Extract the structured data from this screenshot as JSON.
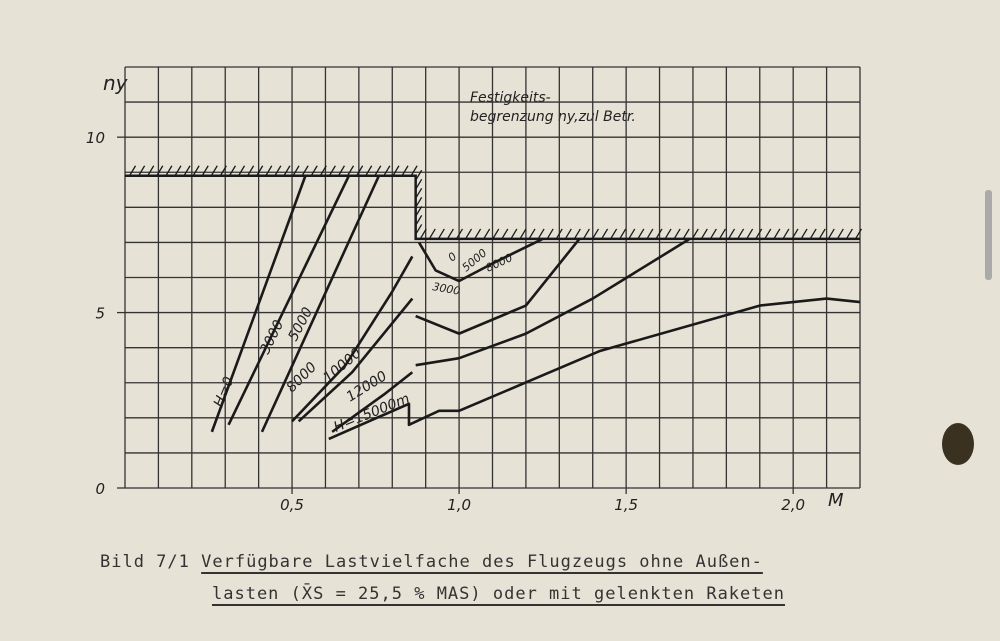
{
  "chart_data": {
    "type": "line",
    "y_label": "ny",
    "x_label": "M",
    "xlim": [
      0,
      2.2
    ],
    "ylim": [
      0,
      12
    ],
    "xticks": [
      {
        "value": 0.5,
        "label": "0,5"
      },
      {
        "value": 1.0,
        "label": "1,0"
      },
      {
        "value": 1.5,
        "label": "1,5"
      },
      {
        "value": 2.0,
        "label": "2,0"
      }
    ],
    "yticks": [
      0,
      5,
      10
    ],
    "xgrid": [
      0,
      0.1,
      0.2,
      0.3,
      0.4,
      0.5,
      0.6,
      0.7,
      0.8,
      0.9,
      1.0,
      1.1,
      1.2,
      1.3,
      1.4,
      1.5,
      1.6,
      1.7,
      1.8,
      1.9,
      2.0,
      2.1,
      2.2
    ],
    "ygrid": [
      0,
      1,
      2,
      3,
      4,
      5,
      6,
      7,
      8,
      9,
      10,
      11,
      12
    ],
    "grid": true,
    "series": [
      {
        "name": "H=0",
        "color": "#1a1a1a",
        "x": [
          0.26,
          0.54
        ],
        "values": [
          1.6,
          8.9
        ]
      },
      {
        "name": "3000",
        "color": "#1a1a1a",
        "x": [
          0.31,
          0.67
        ],
        "values": [
          1.8,
          8.9
        ]
      },
      {
        "name": "5000",
        "color": "#1a1a1a",
        "x": [
          0.41,
          0.76
        ],
        "values": [
          1.6,
          8.9
        ]
      },
      {
        "name": "8000",
        "color": "#1a1a1a",
        "x": [
          0.5,
          0.66,
          0.8,
          0.86,
          0.86,
          0.88,
          0.93,
          1.0,
          1.1,
          1.25
        ],
        "values": [
          1.9,
          3.5,
          5.6,
          6.6,
          null,
          7.0,
          6.2,
          5.9,
          6.4,
          7.1
        ]
      },
      {
        "name": "10000",
        "color": "#1a1a1a",
        "x": [
          0.52,
          0.68,
          0.86,
          0.86,
          0.87,
          1.0,
          1.2,
          1.36
        ],
        "values": [
          1.9,
          3.3,
          5.4,
          null,
          4.9,
          4.4,
          5.2,
          7.1
        ]
      },
      {
        "name": "12000",
        "color": "#1a1a1a",
        "x": [
          0.62,
          0.78,
          0.86,
          0.86,
          0.87,
          1.0,
          1.2,
          1.4,
          1.69
        ],
        "values": [
          1.6,
          2.7,
          3.3,
          null,
          3.5,
          3.7,
          4.4,
          5.4,
          7.1
        ]
      },
      {
        "name": "H=15000m",
        "color": "#1a1a1a",
        "x": [
          0.61,
          0.85,
          0.85,
          0.94,
          1.0,
          1.42,
          1.9,
          2.1,
          2.2
        ],
        "values": [
          1.4,
          2.4,
          1.8,
          2.2,
          2.2,
          3.9,
          5.2,
          5.4,
          5.3
        ]
      }
    ],
    "limit": {
      "x": [
        0,
        0.87,
        0.87,
        2.2
      ],
      "values": [
        8.9,
        8.9,
        7.1,
        7.1
      ]
    },
    "annotation": [
      "Festigkeits-",
      "begrenzung ny,zul Betr."
    ],
    "inner_labels": [
      "0",
      "5000",
      "8000",
      "3000"
    ],
    "caption": {
      "number": "Bild 7/1",
      "line1": "Verfügbare Lastvielfache des Flugzeugs ohne Außen-",
      "line2": "lasten (X̄S = 25,5 % MAS) oder mit gelenkten Raketen"
    }
  }
}
